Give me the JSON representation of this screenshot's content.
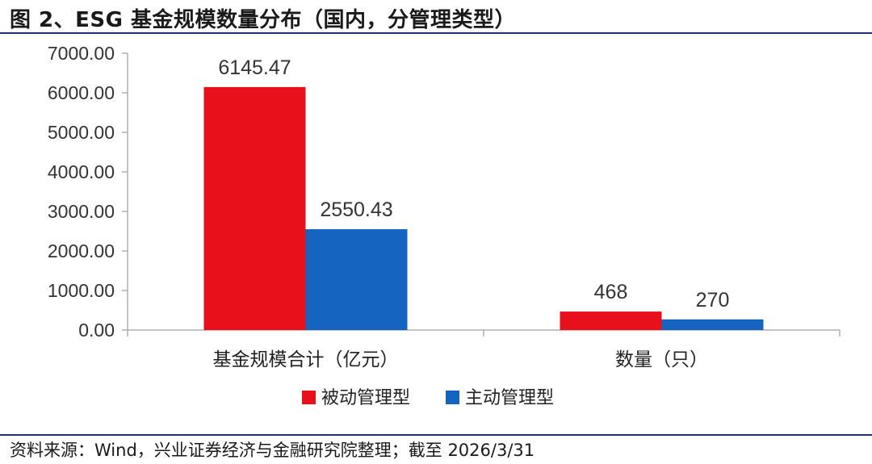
{
  "title": "图 2、ESG 基金规模数量分布（国内，分管理类型）",
  "source": "资料来源：Wind，兴业证券经济与金融研究院整理；截至 2026/3/31",
  "colors": {
    "series_0": "#e8111b",
    "series_1": "#1565c0",
    "rule": "#1f2f7a",
    "axis": "#b0b0b0"
  },
  "chart_data": {
    "type": "bar",
    "categories": [
      "基金规模合计（亿元）",
      "数量（只）"
    ],
    "series": [
      {
        "name": "被动管理型",
        "values": [
          6145.47,
          468
        ],
        "labels": [
          "6145.47",
          "468"
        ]
      },
      {
        "name": "主动管理型",
        "values": [
          2550.43,
          270
        ],
        "labels": [
          "2550.43",
          "270"
        ]
      }
    ],
    "yticks": [
      "0.00",
      "1000.00",
      "2000.00",
      "3000.00",
      "4000.00",
      "5000.00",
      "6000.00",
      "7000.00"
    ],
    "ylim": [
      0,
      7000
    ],
    "xlabel": "",
    "ylabel": "",
    "grid": false,
    "legend": "bottom-center"
  }
}
